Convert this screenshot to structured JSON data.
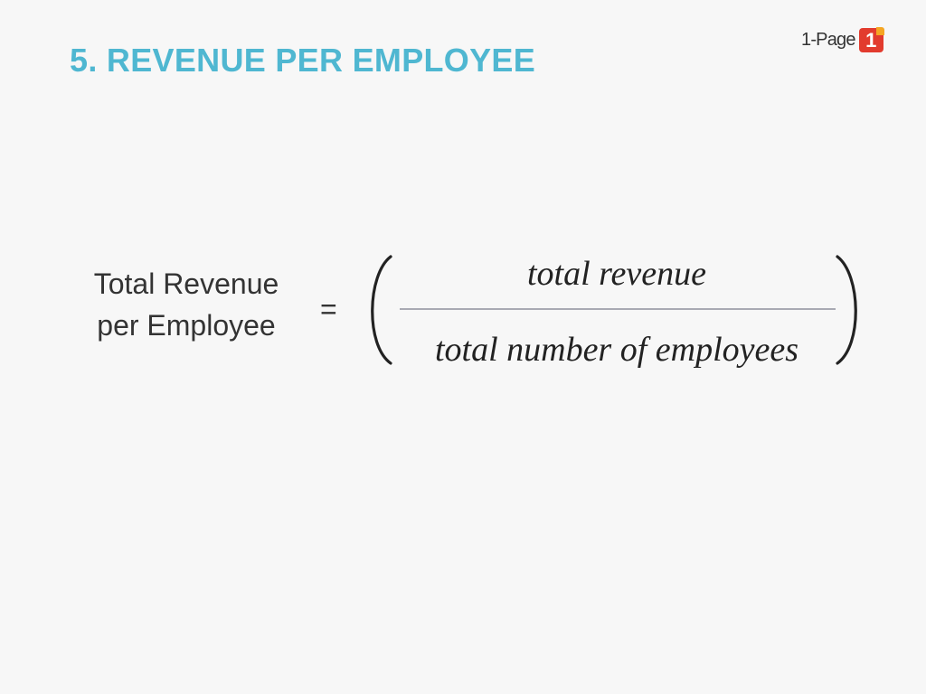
{
  "slide": {
    "title": "5. REVENUE PER EMPLOYEE"
  },
  "brand": {
    "text": "1-Page",
    "badge_number": "1",
    "badge_icon": "number-one-badge-icon"
  },
  "formula": {
    "lhs_line1": "Total Revenue",
    "lhs_line2": "per Employee",
    "equals": "=",
    "numerator": "total revenue",
    "denominator": "total number of employees"
  },
  "colors": {
    "title": "#4fb7d1",
    "brand_red": "#e23b2e",
    "brand_orange": "#f5a623",
    "text": "#333333",
    "fraction_bar": "#a9aab3",
    "background": "#f7f7f7"
  }
}
